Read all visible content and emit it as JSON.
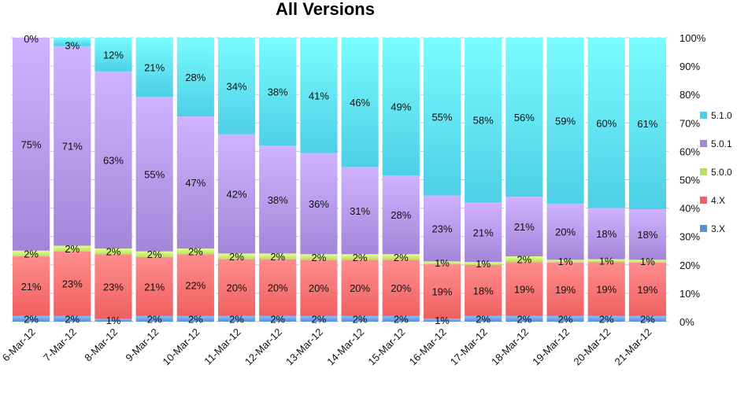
{
  "chart_data": {
    "type": "bar",
    "stacked": true,
    "percent": true,
    "title": "All Versions",
    "xlabel": "",
    "ylabel": "",
    "ylim": [
      0,
      100
    ],
    "y_ticks": [
      "0%",
      "10%",
      "20%",
      "30%",
      "40%",
      "50%",
      "60%",
      "70%",
      "80%",
      "90%",
      "100%"
    ],
    "categories": [
      "6-Mar-12",
      "7-Mar-12",
      "8-Mar-12",
      "9-Mar-12",
      "10-Mar-12",
      "11-Mar-12",
      "12-Mar-12",
      "13-Mar-12",
      "14-Mar-12",
      "15-Mar-12",
      "16-Mar-12",
      "17-Mar-12",
      "18-Mar-12",
      "19-Mar-12",
      "20-Mar-12",
      "21-Mar-12"
    ],
    "legend_position": "right",
    "grid": "horizontal-dashed",
    "series": [
      {
        "name": "3.X",
        "color": "#5b8fd4",
        "values": [
          2,
          2,
          1,
          2,
          2,
          2,
          2,
          2,
          2,
          2,
          1,
          2,
          2,
          2,
          2,
          2
        ]
      },
      {
        "name": "4.X",
        "color": "#f06060",
        "values": [
          21,
          23,
          23,
          21,
          22,
          20,
          20,
          20,
          20,
          20,
          19,
          18,
          19,
          19,
          19,
          19
        ]
      },
      {
        "name": "5.0.0",
        "color": "#b8e060",
        "values": [
          2,
          2,
          2,
          2,
          2,
          2,
          2,
          2,
          2,
          2,
          1,
          1,
          2,
          1,
          1,
          1
        ]
      },
      {
        "name": "5.0.1",
        "color": "#a386d8",
        "values": [
          75,
          71,
          63,
          55,
          47,
          42,
          38,
          36,
          31,
          28,
          23,
          21,
          21,
          20,
          18,
          18
        ]
      },
      {
        "name": "5.1.0",
        "color": "#4dcfe6",
        "values": [
          0,
          3,
          12,
          21,
          28,
          34,
          38,
          41,
          46,
          49,
          55,
          58,
          56,
          59,
          60,
          61
        ]
      }
    ]
  }
}
